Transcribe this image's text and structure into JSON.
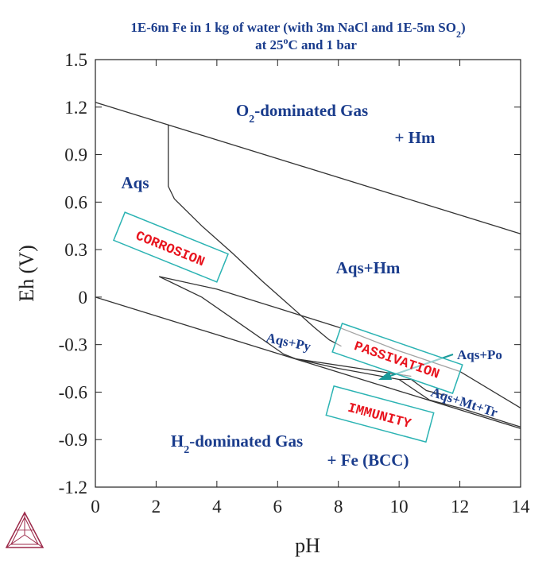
{
  "chart_data": {
    "type": "line",
    "title_line1": "1E-6m Fe in 1 kg of water (with 3m NaCl and 1E-5m SO",
    "title_sub2": "2",
    "title_line1_end": ")",
    "title_line2": "at 25°C and 1 bar",
    "title_line2_pre": "at 25",
    "title_line2_sup": "o",
    "title_line2_post": "C and 1 bar",
    "xlabel": "pH",
    "ylabel": "Eh (V)",
    "xlim": [
      0,
      14
    ],
    "ylim": [
      -1.2,
      1.5
    ],
    "x_ticks": [
      "0",
      "2",
      "4",
      "6",
      "8",
      "10",
      "12",
      "14"
    ],
    "y_ticks": [
      "1.5",
      "1.2",
      "0.9",
      "0.6",
      "0.3",
      "0",
      "-0.3",
      "-0.6",
      "-0.9",
      "-1.2"
    ],
    "y_tick_values": [
      1.5,
      1.2,
      0.9,
      0.6,
      0.3,
      0,
      -0.3,
      -0.6,
      -0.9,
      -1.2
    ],
    "x_tick_values": [
      0,
      2,
      4,
      6,
      8,
      10,
      12,
      14
    ],
    "series": [
      {
        "points": [
          [
            0,
            1.23
          ],
          [
            14,
            0.4
          ]
        ]
      },
      {
        "points": [
          [
            0,
            0.0
          ],
          [
            14,
            -0.83
          ]
        ]
      },
      {
        "points": [
          [
            2.4,
            1.09
          ],
          [
            2.4,
            0.7
          ],
          [
            2.6,
            0.62
          ],
          [
            3.5,
            0.45
          ],
          [
            4.5,
            0.28
          ],
          [
            5.5,
            0.1
          ],
          [
            6.5,
            -0.07
          ],
          [
            7.2,
            -0.19
          ],
          [
            7.7,
            -0.27
          ],
          [
            8.1,
            -0.31
          ]
        ]
      },
      {
        "points": [
          [
            2.1,
            0.13
          ],
          [
            4.0,
            0.05
          ],
          [
            6.0,
            -0.07
          ],
          [
            8.0,
            -0.19
          ],
          [
            10.0,
            -0.34
          ],
          [
            12.0,
            -0.47
          ],
          [
            14.0,
            -0.7
          ]
        ]
      },
      {
        "points": [
          [
            2.1,
            0.13
          ],
          [
            3.5,
            0.0
          ],
          [
            5.0,
            -0.2
          ],
          [
            6.2,
            -0.36
          ],
          [
            6.6,
            -0.39
          ],
          [
            10.4,
            -0.5
          ]
        ]
      },
      {
        "points": [
          [
            6.6,
            -0.39
          ],
          [
            8.0,
            -0.45
          ],
          [
            10.0,
            -0.52
          ],
          [
            10.4,
            -0.52
          ],
          [
            10.9,
            -0.59
          ],
          [
            11.5,
            -0.62
          ]
        ]
      },
      {
        "points": [
          [
            10.0,
            -0.52
          ],
          [
            11.0,
            -0.65
          ],
          [
            12.0,
            -0.7
          ],
          [
            14.0,
            -0.82
          ]
        ]
      }
    ],
    "regions": [
      {
        "label": "O",
        "sub": "2",
        "rest": "-dominated Gas",
        "x": 6.0,
        "y": 1.14
      },
      {
        "label": "+ Hm",
        "x": 10.5,
        "y": 0.97
      },
      {
        "label": "Aqs",
        "x": 1.3,
        "y": 0.69
      },
      {
        "label": "Aqs+Hm",
        "x": 9.1,
        "y": 0.16
      },
      {
        "label": "H",
        "sub": "2",
        "rest": "-dominated Gas",
        "x": 5.1,
        "y": -0.88
      },
      {
        "label": "+ Fe (BCC)",
        "x": 8.1,
        "y": -1.05
      }
    ],
    "annotations": [
      {
        "text": "Aqs+Py",
        "x": 6.4,
        "y": -0.28
      },
      {
        "text": "Aqs+Po",
        "x": 12.4,
        "y": -0.37
      },
      {
        "text": "Aqs+Mt+Tr",
        "x": 12.1,
        "y": -0.62
      }
    ],
    "tags": [
      "CORROSION",
      "PASSIVATION",
      "IMMUNITY"
    ],
    "colors": {
      "line": "#333333",
      "region_text": "#1a3c8c",
      "tag_text": "#e8141e",
      "tag_box": "#2bb3b3",
      "arrow": "#1a9a9a",
      "logo": "#9c2a4a"
    },
    "logo_icon": "thermo-calc-logo-icon"
  }
}
